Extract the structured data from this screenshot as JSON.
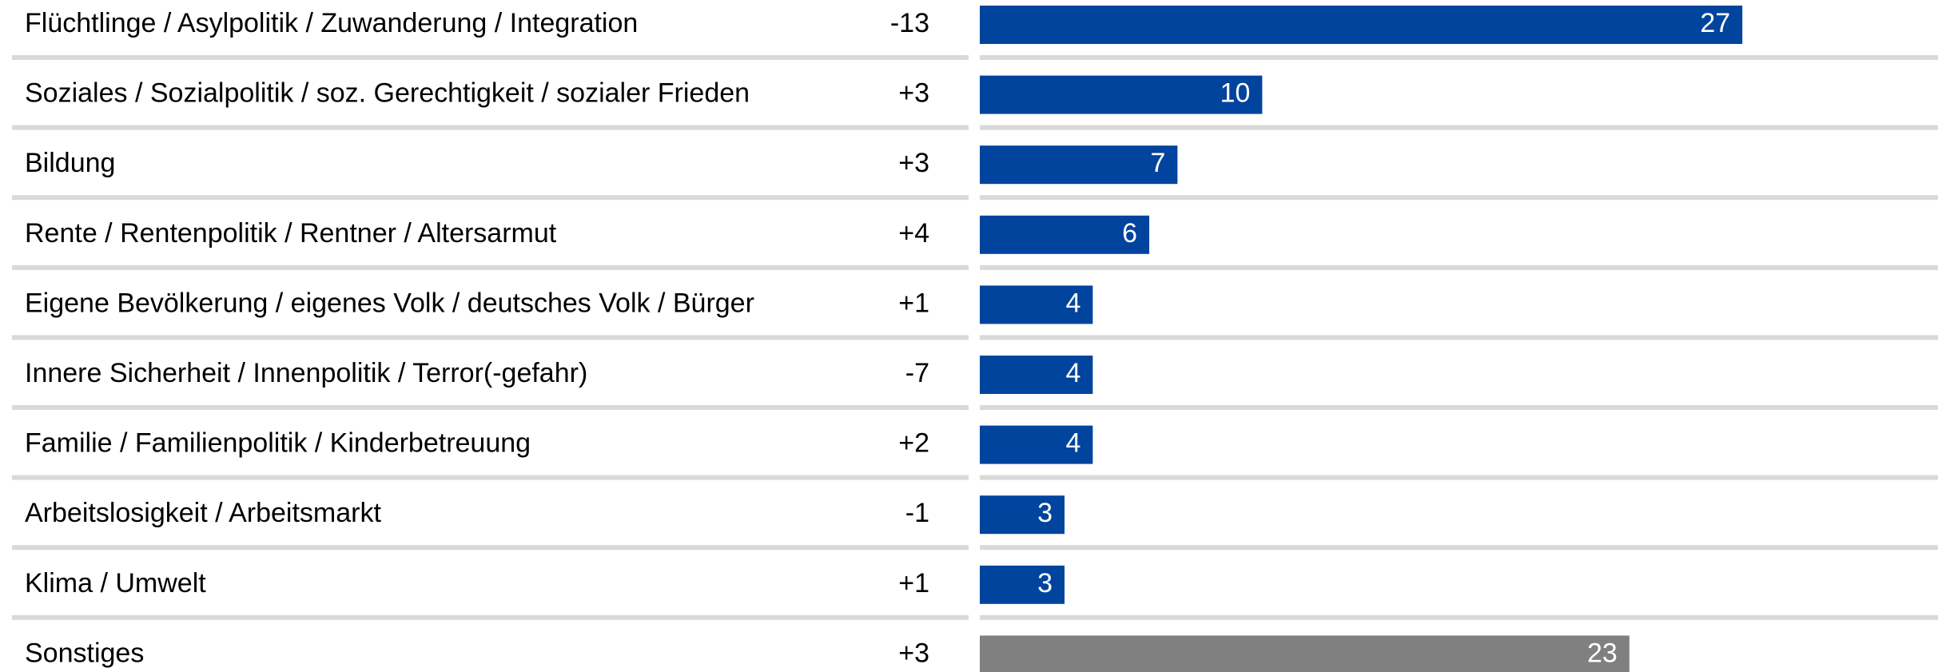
{
  "chart_data": {
    "type": "hbar",
    "categories": [
      "Flüchtlinge / Asylpolitik / Zuwanderung / Integration",
      "Soziales / Sozialpolitik / soz. Gerechtigkeit / sozialer Frieden",
      "Bildung",
      "Rente / Rentenpolitik / Rentner / Altersarmut",
      "Eigene Bevölkerung / eigenes Volk / deutsches Volk / Bürger",
      "Innere Sicherheit / Innenpolitik / Terror(-gefahr)",
      "Familie / Familienpolitik / Kinderbetreuung",
      "Arbeitslosigkeit / Arbeitsmarkt",
      "Klima / Umwelt",
      "Sonstiges"
    ],
    "changes": [
      "-13",
      "+3",
      "+3",
      "+4",
      "+1",
      "-7",
      "+2",
      "-1",
      "+1",
      "+3"
    ],
    "values": [
      27,
      10,
      7,
      6,
      4,
      4,
      4,
      3,
      3,
      23
    ],
    "colors": [
      "#00449e",
      "#00449e",
      "#00449e",
      "#00449e",
      "#00449e",
      "#00449e",
      "#00449e",
      "#00449e",
      "#00449e",
      "#808080"
    ]
  }
}
